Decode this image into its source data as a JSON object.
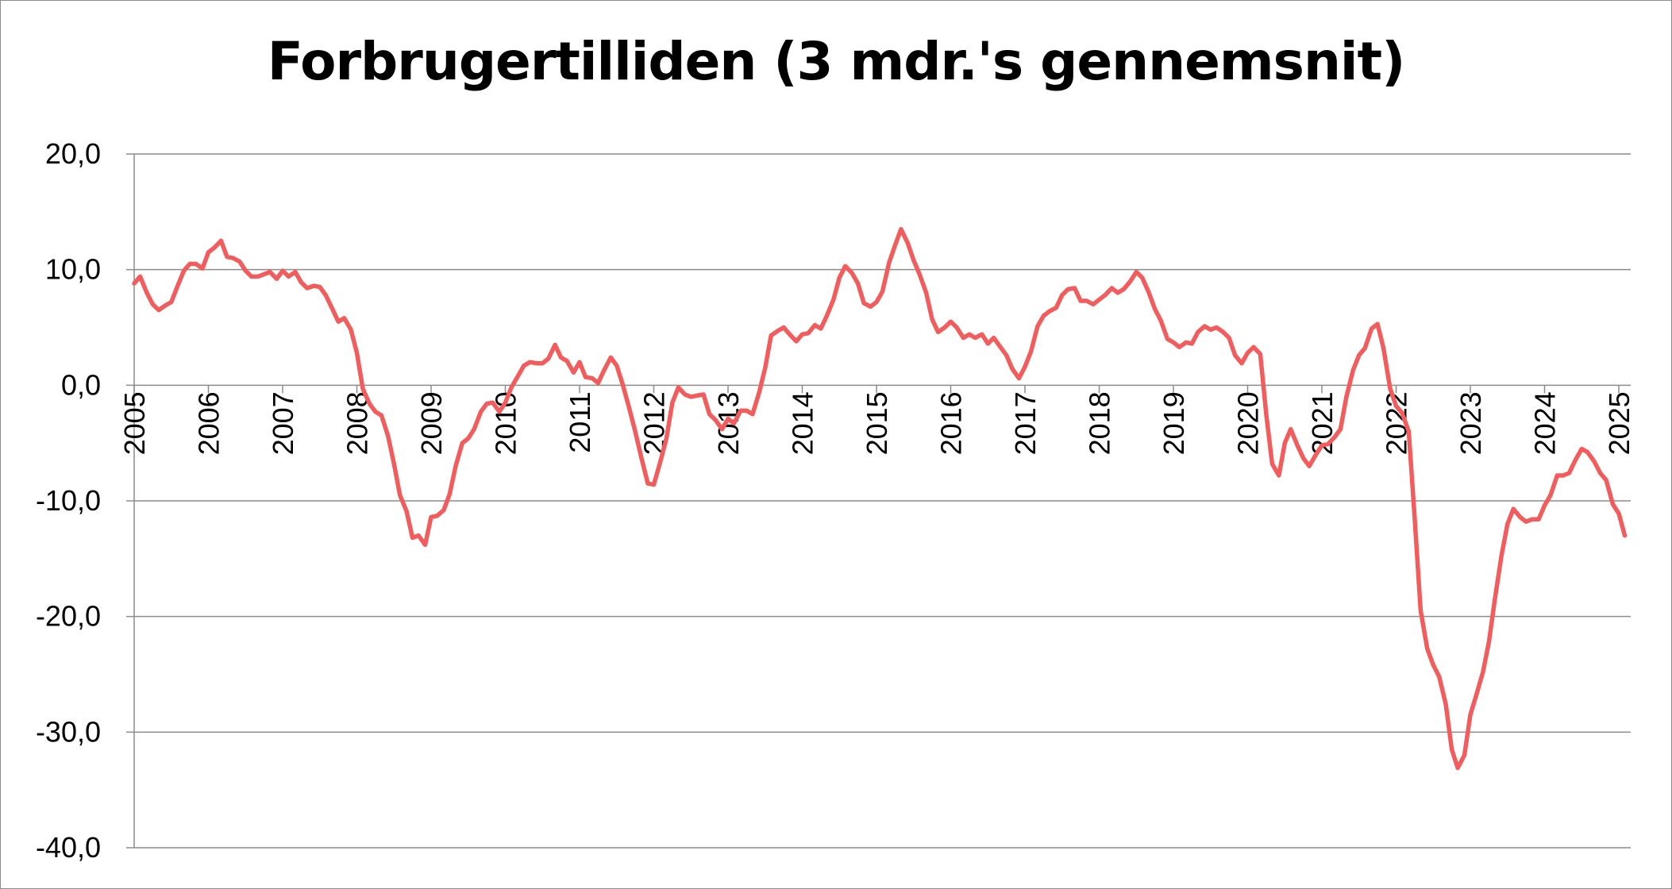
{
  "chart_data": {
    "type": "line",
    "title": "Forbrugertilliden (3 mdr.'s gennemsnit)",
    "xlabel": "",
    "ylabel": "",
    "ylim": [
      -40,
      20
    ],
    "xlim": [
      2005,
      2025.2
    ],
    "grid": true,
    "legend": "none",
    "yticks": [
      "20,0",
      "10,0",
      "0,0",
      "-10,0",
      "-20,0",
      "-30,0",
      "-40,0"
    ],
    "xticks": [
      "2005",
      "2006",
      "2007",
      "2008",
      "2009",
      "2010",
      "2011",
      "2012",
      "2013",
      "2014",
      "2015",
      "2016",
      "2017",
      "2018",
      "2019",
      "2020",
      "2021",
      "2022",
      "2023",
      "2024",
      "2025"
    ],
    "colors": {
      "line": "#f25c5c",
      "grid": "#8c8c8c",
      "axis": "#8c8c8c"
    },
    "series": [
      {
        "values": [
          [
            2005.0,
            8.8
          ],
          [
            2005.08,
            9.4
          ],
          [
            2005.17,
            8.0
          ],
          [
            2005.25,
            7.0
          ],
          [
            2005.33,
            6.5
          ],
          [
            2005.42,
            6.9
          ],
          [
            2005.5,
            7.2
          ],
          [
            2005.58,
            8.5
          ],
          [
            2005.67,
            9.9
          ],
          [
            2005.75,
            10.5
          ],
          [
            2005.83,
            10.5
          ],
          [
            2005.92,
            10.1
          ],
          [
            2006.0,
            11.5
          ],
          [
            2006.08,
            11.9
          ],
          [
            2006.17,
            12.5
          ],
          [
            2006.25,
            11.1
          ],
          [
            2006.33,
            11.0
          ],
          [
            2006.42,
            10.7
          ],
          [
            2006.5,
            9.9
          ],
          [
            2006.58,
            9.4
          ],
          [
            2006.67,
            9.4
          ],
          [
            2006.75,
            9.6
          ],
          [
            2006.83,
            9.8
          ],
          [
            2006.92,
            9.2
          ],
          [
            2007.0,
            9.9
          ],
          [
            2007.08,
            9.4
          ],
          [
            2007.17,
            9.8
          ],
          [
            2007.25,
            8.9
          ],
          [
            2007.33,
            8.4
          ],
          [
            2007.42,
            8.6
          ],
          [
            2007.5,
            8.5
          ],
          [
            2007.58,
            7.8
          ],
          [
            2007.67,
            6.6
          ],
          [
            2007.75,
            5.5
          ],
          [
            2007.83,
            5.8
          ],
          [
            2007.92,
            4.8
          ],
          [
            2008.0,
            2.8
          ],
          [
            2008.08,
            -0.3
          ],
          [
            2008.17,
            -1.6
          ],
          [
            2008.25,
            -2.3
          ],
          [
            2008.33,
            -2.6
          ],
          [
            2008.42,
            -4.4
          ],
          [
            2008.5,
            -6.8
          ],
          [
            2008.58,
            -9.5
          ],
          [
            2008.67,
            -10.9
          ],
          [
            2008.75,
            -13.2
          ],
          [
            2008.83,
            -13.0
          ],
          [
            2008.92,
            -13.8
          ],
          [
            2009.0,
            -11.4
          ],
          [
            2009.08,
            -11.3
          ],
          [
            2009.17,
            -10.8
          ],
          [
            2009.25,
            -9.4
          ],
          [
            2009.33,
            -7.0
          ],
          [
            2009.42,
            -5.0
          ],
          [
            2009.5,
            -4.6
          ],
          [
            2009.58,
            -3.8
          ],
          [
            2009.67,
            -2.3
          ],
          [
            2009.75,
            -1.6
          ],
          [
            2009.83,
            -1.5
          ],
          [
            2009.92,
            -2.3
          ],
          [
            2010.0,
            -1.5
          ],
          [
            2010.08,
            -0.2
          ],
          [
            2010.17,
            0.8
          ],
          [
            2010.25,
            1.7
          ],
          [
            2010.33,
            2.0
          ],
          [
            2010.42,
            1.9
          ],
          [
            2010.5,
            1.9
          ],
          [
            2010.58,
            2.3
          ],
          [
            2010.67,
            3.5
          ],
          [
            2010.75,
            2.4
          ],
          [
            2010.83,
            2.1
          ],
          [
            2010.92,
            1.1
          ],
          [
            2011.0,
            2.0
          ],
          [
            2011.08,
            0.7
          ],
          [
            2011.17,
            0.6
          ],
          [
            2011.25,
            0.2
          ],
          [
            2011.33,
            1.3
          ],
          [
            2011.42,
            2.4
          ],
          [
            2011.5,
            1.7
          ],
          [
            2011.58,
            0.1
          ],
          [
            2011.67,
            -2.0
          ],
          [
            2011.75,
            -4.0
          ],
          [
            2011.83,
            -6.2
          ],
          [
            2011.92,
            -8.5
          ],
          [
            2012.0,
            -8.6
          ],
          [
            2012.08,
            -6.8
          ],
          [
            2012.17,
            -4.6
          ],
          [
            2012.25,
            -1.5
          ],
          [
            2012.33,
            -0.2
          ],
          [
            2012.42,
            -0.8
          ],
          [
            2012.5,
            -1.0
          ],
          [
            2012.58,
            -0.9
          ],
          [
            2012.67,
            -0.8
          ],
          [
            2012.75,
            -2.5
          ],
          [
            2012.83,
            -3.0
          ],
          [
            2012.92,
            -3.8
          ],
          [
            2013.0,
            -2.9
          ],
          [
            2013.08,
            -3.3
          ],
          [
            2013.17,
            -2.2
          ],
          [
            2013.25,
            -2.2
          ],
          [
            2013.33,
            -2.5
          ],
          [
            2013.42,
            -0.6
          ],
          [
            2013.5,
            1.5
          ],
          [
            2013.58,
            4.3
          ],
          [
            2013.67,
            4.7
          ],
          [
            2013.75,
            5.0
          ],
          [
            2013.83,
            4.4
          ],
          [
            2013.92,
            3.8
          ],
          [
            2014.0,
            4.4
          ],
          [
            2014.08,
            4.5
          ],
          [
            2014.17,
            5.2
          ],
          [
            2014.25,
            4.9
          ],
          [
            2014.33,
            6.0
          ],
          [
            2014.42,
            7.4
          ],
          [
            2014.5,
            9.3
          ],
          [
            2014.58,
            10.3
          ],
          [
            2014.67,
            9.7
          ],
          [
            2014.75,
            8.8
          ],
          [
            2014.83,
            7.1
          ],
          [
            2014.92,
            6.8
          ],
          [
            2015.0,
            7.2
          ],
          [
            2015.08,
            8.1
          ],
          [
            2015.17,
            10.6
          ],
          [
            2015.25,
            12.1
          ],
          [
            2015.33,
            13.5
          ],
          [
            2015.42,
            12.3
          ],
          [
            2015.5,
            10.8
          ],
          [
            2015.58,
            9.6
          ],
          [
            2015.67,
            8.0
          ],
          [
            2015.75,
            5.7
          ],
          [
            2015.83,
            4.6
          ],
          [
            2015.92,
            5.0
          ],
          [
            2016.0,
            5.5
          ],
          [
            2016.08,
            5.0
          ],
          [
            2016.17,
            4.1
          ],
          [
            2016.25,
            4.4
          ],
          [
            2016.33,
            4.1
          ],
          [
            2016.42,
            4.4
          ],
          [
            2016.5,
            3.6
          ],
          [
            2016.58,
            4.1
          ],
          [
            2016.67,
            3.3
          ],
          [
            2016.75,
            2.6
          ],
          [
            2016.83,
            1.4
          ],
          [
            2016.92,
            0.6
          ],
          [
            2017.0,
            1.6
          ],
          [
            2017.08,
            2.9
          ],
          [
            2017.17,
            5.1
          ],
          [
            2017.25,
            6.0
          ],
          [
            2017.33,
            6.4
          ],
          [
            2017.42,
            6.7
          ],
          [
            2017.5,
            7.8
          ],
          [
            2017.58,
            8.3
          ],
          [
            2017.67,
            8.4
          ],
          [
            2017.75,
            7.3
          ],
          [
            2017.83,
            7.3
          ],
          [
            2017.92,
            7.0
          ],
          [
            2018.0,
            7.4
          ],
          [
            2018.08,
            7.8
          ],
          [
            2018.17,
            8.4
          ],
          [
            2018.25,
            8.0
          ],
          [
            2018.33,
            8.3
          ],
          [
            2018.42,
            9.0
          ],
          [
            2018.5,
            9.8
          ],
          [
            2018.58,
            9.3
          ],
          [
            2018.67,
            8.0
          ],
          [
            2018.75,
            6.6
          ],
          [
            2018.83,
            5.6
          ],
          [
            2018.92,
            4.0
          ],
          [
            2019.0,
            3.7
          ],
          [
            2019.08,
            3.3
          ],
          [
            2019.17,
            3.7
          ],
          [
            2019.25,
            3.6
          ],
          [
            2019.33,
            4.6
          ],
          [
            2019.42,
            5.1
          ],
          [
            2019.5,
            4.8
          ],
          [
            2019.58,
            5.0
          ],
          [
            2019.67,
            4.6
          ],
          [
            2019.75,
            4.1
          ],
          [
            2019.83,
            2.6
          ],
          [
            2019.92,
            1.9
          ],
          [
            2020.0,
            2.8
          ],
          [
            2020.08,
            3.3
          ],
          [
            2020.17,
            2.7
          ],
          [
            2020.25,
            -2.5
          ],
          [
            2020.33,
            -6.8
          ],
          [
            2020.42,
            -7.8
          ],
          [
            2020.5,
            -5.0
          ],
          [
            2020.58,
            -3.8
          ],
          [
            2020.67,
            -5.2
          ],
          [
            2020.75,
            -6.3
          ],
          [
            2020.83,
            -7.0
          ],
          [
            2020.92,
            -6.0
          ],
          [
            2021.0,
            -5.2
          ],
          [
            2021.08,
            -5.1
          ],
          [
            2021.17,
            -4.5
          ],
          [
            2021.25,
            -3.8
          ],
          [
            2021.33,
            -1.0
          ],
          [
            2021.42,
            1.3
          ],
          [
            2021.5,
            2.6
          ],
          [
            2021.58,
            3.2
          ],
          [
            2021.67,
            4.9
          ],
          [
            2021.75,
            5.3
          ],
          [
            2021.83,
            3.2
          ],
          [
            2021.92,
            -0.3
          ],
          [
            2022.0,
            -1.8
          ],
          [
            2022.08,
            -2.4
          ],
          [
            2022.17,
            -4.0
          ],
          [
            2022.25,
            -11.5
          ],
          [
            2022.33,
            -19.5
          ],
          [
            2022.42,
            -22.8
          ],
          [
            2022.5,
            -24.2
          ],
          [
            2022.58,
            -25.2
          ],
          [
            2022.67,
            -27.6
          ],
          [
            2022.75,
            -31.5
          ],
          [
            2022.83,
            -33.1
          ],
          [
            2022.92,
            -32.0
          ],
          [
            2023.0,
            -28.5
          ],
          [
            2023.08,
            -26.8
          ],
          [
            2023.17,
            -24.8
          ],
          [
            2023.25,
            -22.2
          ],
          [
            2023.33,
            -18.5
          ],
          [
            2023.42,
            -14.7
          ],
          [
            2023.5,
            -12.0
          ],
          [
            2023.58,
            -10.7
          ],
          [
            2023.67,
            -11.4
          ],
          [
            2023.75,
            -11.8
          ],
          [
            2023.83,
            -11.6
          ],
          [
            2023.92,
            -11.6
          ],
          [
            2024.0,
            -10.4
          ],
          [
            2024.08,
            -9.5
          ],
          [
            2024.17,
            -7.8
          ],
          [
            2024.25,
            -7.8
          ],
          [
            2024.33,
            -7.6
          ],
          [
            2024.42,
            -6.4
          ],
          [
            2024.5,
            -5.5
          ],
          [
            2024.58,
            -5.8
          ],
          [
            2024.67,
            -6.6
          ],
          [
            2024.75,
            -7.6
          ],
          [
            2024.83,
            -8.2
          ],
          [
            2024.92,
            -10.3
          ],
          [
            2025.0,
            -11.1
          ],
          [
            2025.08,
            -13.0
          ]
        ]
      }
    ]
  }
}
